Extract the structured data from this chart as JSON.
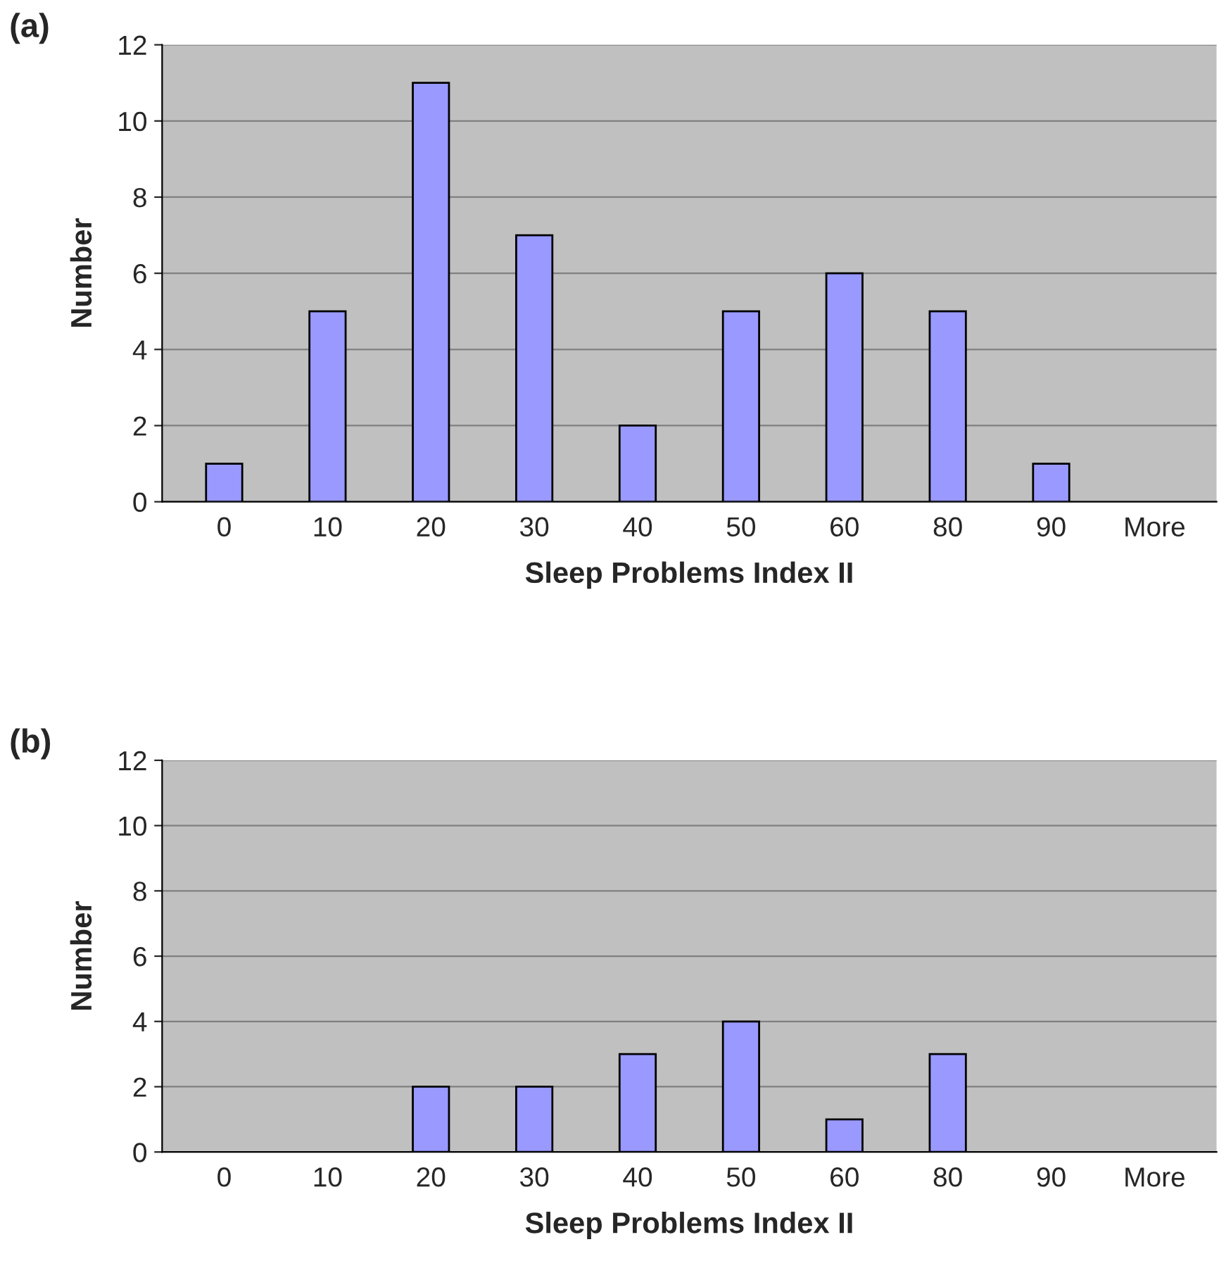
{
  "chart_data": [
    {
      "type": "bar",
      "title": "(a)",
      "xlabel": "Sleep Problems Index II",
      "ylabel": "Number",
      "categories": [
        "0",
        "10",
        "20",
        "30",
        "40",
        "50",
        "60",
        "80",
        "90",
        "More"
      ],
      "values": [
        1,
        5,
        11,
        7,
        2,
        5,
        6,
        5,
        1,
        0
      ],
      "color": "#9999ff",
      "ylim": [
        0,
        12
      ],
      "yticks": [
        0,
        2,
        4,
        6,
        8,
        10,
        12
      ],
      "grid": "y"
    },
    {
      "type": "bar",
      "title": "(b)",
      "xlabel": "Sleep Problems Index II",
      "ylabel": "Number",
      "categories": [
        "0",
        "10",
        "20",
        "30",
        "40",
        "50",
        "60",
        "80",
        "90",
        "More"
      ],
      "values": [
        0,
        0,
        2,
        2,
        3,
        4,
        1,
        3,
        0,
        0
      ],
      "color": "#9999ff",
      "ylim": [
        0,
        12
      ],
      "yticks": [
        0,
        2,
        4,
        6,
        8,
        10,
        12
      ],
      "grid": "y"
    }
  ]
}
